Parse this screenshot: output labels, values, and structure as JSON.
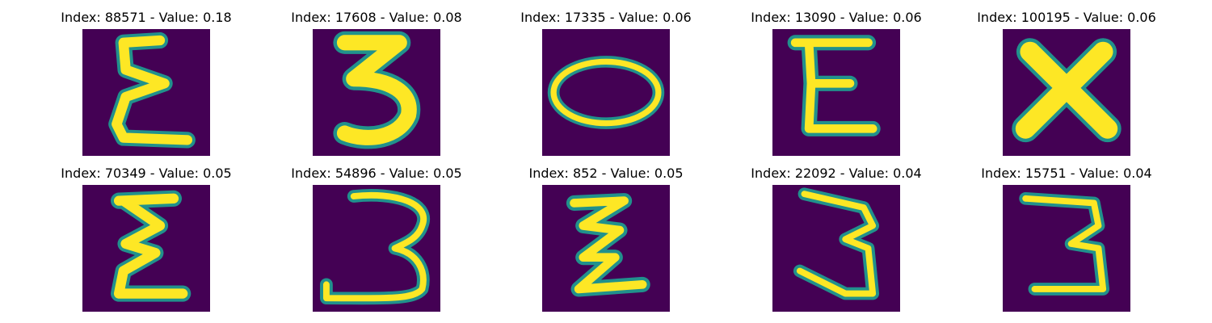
{
  "colors": {
    "background": "#440154",
    "stroke_mid": "#21918c",
    "stroke_core": "#fde725",
    "stroke_edge": "#5ec962"
  },
  "panels": [
    {
      "title": "Index: 88571 - Value: 0.18",
      "glyph": "letter-e-sigma"
    },
    {
      "title": "Index: 17608 - Value: 0.08",
      "glyph": "digit-3-bold"
    },
    {
      "title": "Index: 17335 - Value: 0.06",
      "glyph": "ellipse-o"
    },
    {
      "title": "Index: 13090 - Value: 0.06",
      "glyph": "letter-e"
    },
    {
      "title": "Index: 100195 - Value: 0.06",
      "glyph": "letter-x"
    },
    {
      "title": "Index: 70349 - Value: 0.05",
      "glyph": "letter-e-sigma"
    },
    {
      "title": "Index: 54896 - Value: 0.05",
      "glyph": "digit-3"
    },
    {
      "title": "Index: 852 - Value: 0.05",
      "glyph": "zigzag"
    },
    {
      "title": "Index: 22092 - Value: 0.04",
      "glyph": "digit-3-thin"
    },
    {
      "title": "Index: 15751 - Value: 0.04",
      "glyph": "digit-3-flat"
    }
  ]
}
